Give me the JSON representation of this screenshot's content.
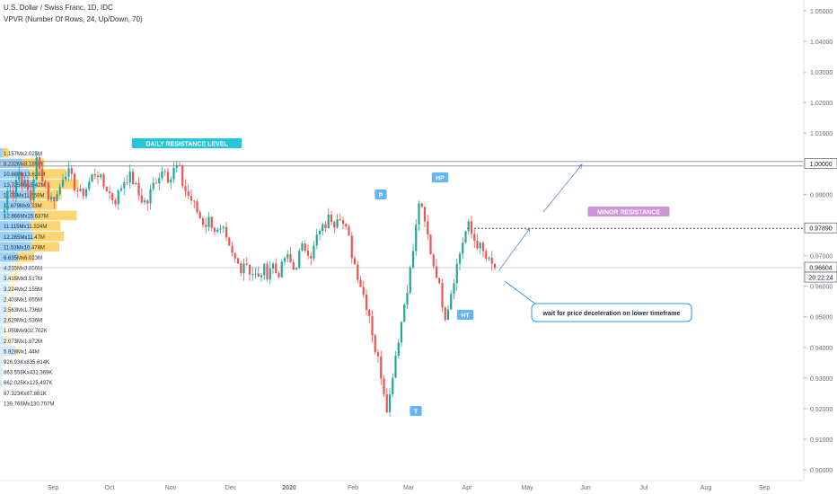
{
  "header": {
    "title": "U.S. Dollar / Swiss Franc, 1D, IDC",
    "indicator": "VPVR (Number Of Rows, 24, Up/Down, 70)"
  },
  "colors": {
    "up": "#26a69a",
    "down": "#ef5350",
    "vp_up": "#2196f3",
    "vp_down": "#ffb300",
    "label_blue": "#2962ff",
    "callout_border": "#2196f3"
  },
  "chart_data": {
    "type": "candlestick",
    "y_ticks": [
      "1.05000",
      "1.04000",
      "1.03000",
      "1.02000",
      "1.01000",
      "1.00000",
      "0.99000",
      "0.98000",
      "0.97000",
      "0.96000",
      "0.95000",
      "0.94000",
      "0.93000",
      "0.92000",
      "0.91000",
      "0.90000"
    ],
    "x_ticks": [
      "Sep",
      "Oct",
      "Nov",
      "Dec",
      "2020",
      "Feb",
      "Mar",
      "Apr",
      "May",
      "Jun",
      "Jul",
      "Aug",
      "Sep"
    ],
    "price_tags": [
      "1.00000",
      "0.97890",
      "0.96604",
      "20:22:24"
    ],
    "last_price": 0.96604,
    "resistance_daily": 1.0,
    "resistance_minor": 0.9789,
    "volume_profile": [
      {
        "label": "1.157Mx2.025M",
        "up": 1.157,
        "down": 2.025
      },
      {
        "label": "8.232Mx8.185M",
        "up": 8.232,
        "down": 8.185
      },
      {
        "label": "10.88Mx13.628M",
        "up": 10.88,
        "down": 13.628
      },
      {
        "label": "13.725Mx15.42M",
        "up": 13.725,
        "down": 15.42
      },
      {
        "label": "11.33Mx11.559M",
        "up": 11.33,
        "down": 11.559
      },
      {
        "label": "11.679Mx9.33M",
        "up": 11.679,
        "down": 9.33
      },
      {
        "label": "12.866Mx15.637M",
        "up": 12.866,
        "down": 15.637
      },
      {
        "label": "11.115Mx11.324M",
        "up": 11.115,
        "down": 11.324
      },
      {
        "label": "12.265Mx11.47M",
        "up": 12.265,
        "down": 11.47
      },
      {
        "label": "11.53Mx10.478M",
        "up": 11.53,
        "down": 10.478
      },
      {
        "label": "6.635Mx6.023M",
        "up": 6.635,
        "down": 6.023
      },
      {
        "label": "4.235Mx3.856M",
        "up": 4.235,
        "down": 3.856
      },
      {
        "label": "3.415Mx3.517M",
        "up": 3.415,
        "down": 3.517
      },
      {
        "label": "3.224Mx2.155M",
        "up": 3.224,
        "down": 2.155
      },
      {
        "label": "2.403Mx1.055M",
        "up": 2.403,
        "down": 1.055
      },
      {
        "label": "2.563Mx1.736M",
        "up": 2.563,
        "down": 1.736
      },
      {
        "label": "2.629Mx1.536M",
        "up": 2.629,
        "down": 1.536
      },
      {
        "label": "1.059Mx902.702K",
        "up": 1.059,
        "down": 0.902702
      },
      {
        "label": "2.073Mx1.872M",
        "up": 2.073,
        "down": 1.872
      },
      {
        "label": "5.928Mx1.44M",
        "up": 5.928,
        "down": 1.44
      },
      {
        "label": "926.93Kx835.614K",
        "up": 0.92693,
        "down": 0.835614
      },
      {
        "label": "863.558Kx432.369K",
        "up": 0.863558,
        "down": 0.432369
      },
      {
        "label": "662.025Kx125.497K",
        "up": 0.662025,
        "down": 0.125497
      },
      {
        "label": "87.323Kx87.881K",
        "up": 0.087323,
        "down": 0.087881
      },
      {
        "label": "139.766Mx130.707M",
        "up": 139.766,
        "down": 130.707
      }
    ],
    "path": [
      [
        0.985,
        0.994
      ],
      [
        0.99,
        0.998
      ],
      [
        0.995,
        0.992
      ],
      [
        0.988,
        1.002
      ],
      [
        0.997,
        0.995
      ],
      [
        0.988,
        0.989
      ],
      [
        0.99,
        0.996
      ],
      [
        0.998,
        0.995
      ],
      [
        0.992,
        0.99
      ],
      [
        0.991,
        0.994
      ],
      [
        0.997,
        0.997
      ],
      [
        0.993,
        0.992
      ],
      [
        0.989,
        0.988
      ],
      [
        0.992,
        0.995
      ],
      [
        0.996,
        0.994
      ],
      [
        0.99,
        0.988
      ],
      [
        0.987,
        0.992
      ],
      [
        0.995,
        0.997
      ],
      [
        0.999,
        0.994
      ],
      [
        0.998,
        0.9995
      ],
      [
        0.993,
        0.99
      ],
      [
        0.988,
        0.985
      ],
      [
        0.982,
        0.98
      ],
      [
        0.982,
        0.979
      ],
      [
        0.977,
        0.978
      ],
      [
        0.973,
        0.97
      ],
      [
        0.968,
        0.966
      ],
      [
        0.969,
        0.965
      ],
      [
        0.964,
        0.962
      ],
      [
        0.966,
        0.964
      ],
      [
        0.968,
        0.964
      ],
      [
        0.965,
        0.97
      ],
      [
        0.968,
        0.965
      ],
      [
        0.97,
        0.973
      ],
      [
        0.972,
        0.97
      ],
      [
        0.976,
        0.978
      ],
      [
        0.98,
        0.983
      ],
      [
        0.981,
        0.985
      ],
      [
        0.98,
        0.977
      ],
      [
        0.97,
        0.965
      ],
      [
        0.96,
        0.955
      ],
      [
        0.95,
        0.94
      ],
      [
        0.935,
        0.927
      ],
      [
        0.919,
        0.931
      ],
      [
        0.94,
        0.948
      ],
      [
        0.957,
        0.965
      ],
      [
        0.975,
        0.988
      ],
      [
        0.982,
        0.976
      ],
      [
        0.968,
        0.964
      ],
      [
        0.956,
        0.95
      ],
      [
        0.957,
        0.964
      ],
      [
        0.97,
        0.976
      ],
      [
        0.98,
        0.976
      ],
      [
        0.974,
        0.972
      ],
      [
        0.969,
        0.967
      ],
      [
        0.966
      ]
    ],
    "annotations": [
      {
        "text": "DAILY RESISTANCE LEVEL",
        "price": 1.0035,
        "date_index": 33
      },
      {
        "text": "P",
        "price": 0.9895,
        "date_index": 90
      },
      {
        "text": "HP",
        "price": 0.9915,
        "date_index": 108
      },
      {
        "text": "MINOR RESISTANCE",
        "price": 0.98,
        "date_index": 152
      },
      {
        "text": "HT",
        "price": 0.95,
        "date_index": 112
      },
      {
        "text": "T",
        "price": 0.9195,
        "date_index": 100
      }
    ],
    "callout": "wait for price deceleration on lower timeframe"
  }
}
